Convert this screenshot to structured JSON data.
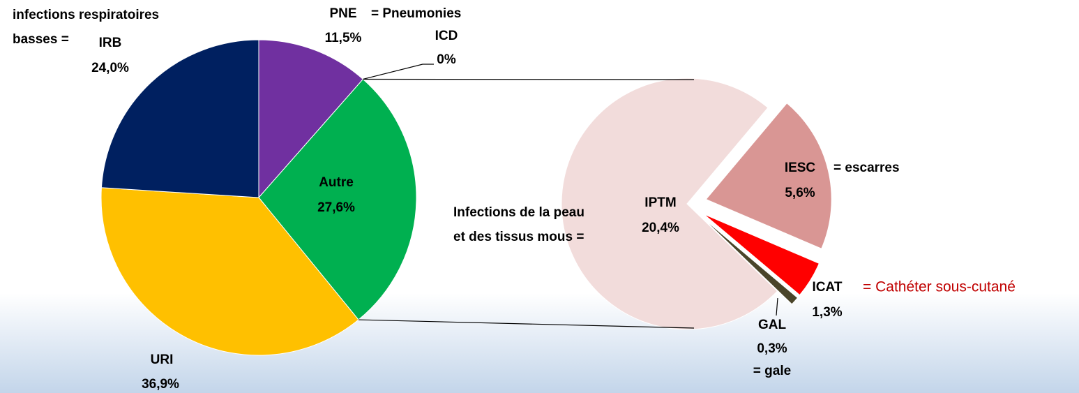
{
  "chart_data": [
    {
      "type": "pie",
      "categories": [
        "PNE",
        "ICD",
        "Autre",
        "URI",
        "IRB"
      ],
      "values": [
        11.5,
        0,
        27.6,
        36.9,
        24.0
      ],
      "value_labels": [
        "11,5%",
        "0%",
        "27,6%",
        "36,9%",
        "24,0%"
      ],
      "colors": [
        "#7030a0",
        "#7030a0",
        "#00b050",
        "#ffc000",
        "#002060"
      ]
    },
    {
      "type": "pie",
      "categories": [
        "IPTM",
        "IESC",
        "ICAT",
        "GAL"
      ],
      "values": [
        20.4,
        5.6,
        1.3,
        0.3
      ],
      "value_labels": [
        "20,4%",
        "5,6%",
        "1,3%",
        "0,3%"
      ],
      "colors": [
        "#f2dcdb",
        "#d99694",
        "#ff0000",
        "#4a452a"
      ]
    }
  ],
  "annotations": [
    "infections respiratoires",
    "basses =",
    "= Pneumonies",
    "= escarres",
    "Infections de la peau",
    "et des tissus mous =",
    "= Cathéter sous-cutané",
    "= gale"
  ]
}
